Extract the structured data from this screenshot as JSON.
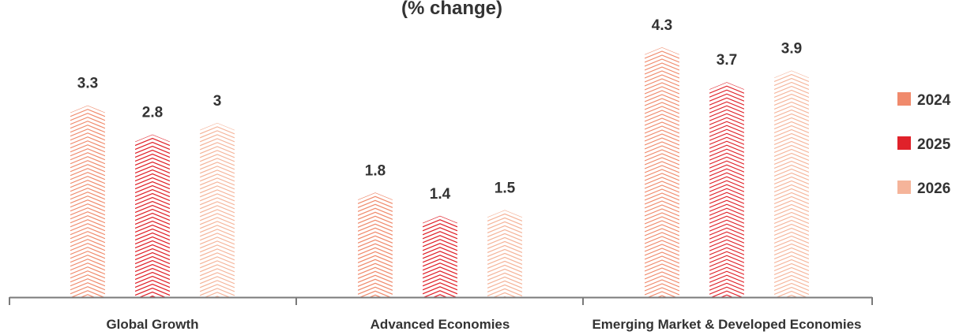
{
  "chart_data": {
    "type": "bar",
    "title": "(% change)",
    "categories": [
      "Global Growth",
      "Advanced Economies",
      "Emerging Market & Developed Economies"
    ],
    "series": [
      {
        "name": "2024",
        "values": [
          3.3,
          1.8,
          4.3
        ],
        "labels": [
          "3.3",
          "1.8",
          "4.3"
        ],
        "color": "#f08a6c"
      },
      {
        "name": "2025",
        "values": [
          2.8,
          1.4,
          3.7
        ],
        "labels": [
          "2.8",
          "1.4",
          "3.7"
        ],
        "color": "#e0222a"
      },
      {
        "name": "2026",
        "values": [
          3.0,
          1.5,
          3.9
        ],
        "labels": [
          "3",
          "1.5",
          "3.9"
        ],
        "color": "#f5b49a"
      }
    ],
    "ylim": [
      0,
      4.3
    ],
    "grid": false,
    "legend_position": "right"
  }
}
